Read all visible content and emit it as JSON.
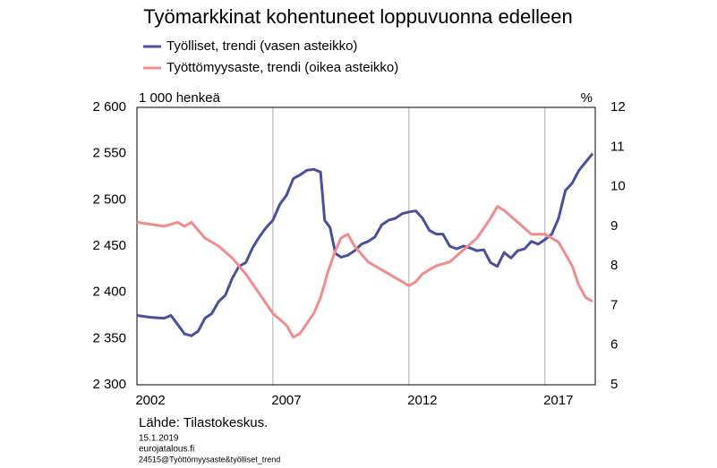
{
  "chart_data": {
    "type": "line",
    "title": "Työmarkkinat kohentuneet loppuvuonna edelleen",
    "y_label": "1 000 henkeä",
    "y2_label": "%",
    "source": "Lähde: Tilastokeskus.",
    "notes": [
      "15.1.2019",
      "eurojatalous.fi",
      "24515@Työttömyysaste&työlliset_trend"
    ],
    "grid": "x",
    "xlim": [
      2002,
      2018.85
    ],
    "xticks": [
      2002,
      2007,
      2012,
      2017
    ],
    "ylim": [
      2300,
      2600
    ],
    "yticks": [
      {
        "value": 2300,
        "label": "2 300"
      },
      {
        "value": 2350,
        "label": "2 350"
      },
      {
        "value": 2400,
        "label": "2 400"
      },
      {
        "value": 2450,
        "label": "2 450"
      },
      {
        "value": 2500,
        "label": "2 500"
      },
      {
        "value": 2550,
        "label": "2 550"
      },
      {
        "value": 2600,
        "label": "2 600"
      }
    ],
    "y2lim": [
      5,
      12
    ],
    "y2ticks": [
      5,
      6,
      7,
      8,
      9,
      10,
      11,
      12
    ],
    "series": [
      {
        "name": "Työlliset, trendi (vasen asteikko)",
        "color": "#4a4f9f",
        "x": [
          2002.0,
          2002.5,
          2003.0,
          2003.25,
          2003.5,
          2003.75,
          2004.0,
          2004.25,
          2004.5,
          2004.75,
          2005.0,
          2005.25,
          2005.5,
          2005.75,
          2006.0,
          2006.25,
          2006.5,
          2006.75,
          2007.0,
          2007.25,
          2007.5,
          2007.75,
          2008.0,
          2008.25,
          2008.5,
          2008.75,
          2008.9,
          2009.1,
          2009.3,
          2009.5,
          2009.75,
          2010.0,
          2010.25,
          2010.5,
          2010.75,
          2011.0,
          2011.25,
          2011.5,
          2011.75,
          2012.0,
          2012.25,
          2012.5,
          2012.75,
          2013.0,
          2013.25,
          2013.5,
          2013.75,
          2014.0,
          2014.25,
          2014.5,
          2014.75,
          2015.0,
          2015.25,
          2015.5,
          2015.75,
          2016.0,
          2016.25,
          2016.5,
          2016.75,
          2017.0,
          2017.25,
          2017.5,
          2017.75,
          2018.0,
          2018.25,
          2018.5,
          2018.75
        ],
        "values": [
          2375,
          2373,
          2372,
          2375,
          2365,
          2355,
          2353,
          2358,
          2372,
          2377,
          2390,
          2397,
          2415,
          2428,
          2432,
          2448,
          2460,
          2470,
          2478,
          2495,
          2505,
          2523,
          2527,
          2532,
          2533,
          2530,
          2478,
          2470,
          2442,
          2438,
          2440,
          2445,
          2452,
          2455,
          2460,
          2473,
          2478,
          2480,
          2485,
          2487,
          2488,
          2480,
          2467,
          2463,
          2463,
          2450,
          2447,
          2450,
          2448,
          2445,
          2446,
          2432,
          2428,
          2443,
          2437,
          2445,
          2447,
          2455,
          2452,
          2457,
          2463,
          2480,
          2510,
          2518,
          2532,
          2541,
          2550
        ]
      },
      {
        "name": "Työttömyysaste, trendi (oikea asteikko)",
        "color": "#f08c8c",
        "axis": "y2",
        "x": [
          2002.0,
          2003.0,
          2003.5,
          2003.75,
          2004.0,
          2004.5,
          2005.0,
          2005.5,
          2006.0,
          2006.5,
          2007.0,
          2007.5,
          2007.75,
          2008.0,
          2008.5,
          2008.75,
          2009.0,
          2009.25,
          2009.5,
          2009.75,
          2010.0,
          2010.5,
          2011.0,
          2011.5,
          2012.0,
          2012.25,
          2012.5,
          2013.0,
          2013.5,
          2014.0,
          2014.5,
          2015.0,
          2015.25,
          2015.5,
          2016.0,
          2016.5,
          2017.0,
          2017.5,
          2018.0,
          2018.25,
          2018.5,
          2018.75
        ],
        "values": [
          9.1,
          9.0,
          9.1,
          9.0,
          9.1,
          8.7,
          8.5,
          8.2,
          7.8,
          7.3,
          6.8,
          6.5,
          6.2,
          6.3,
          6.8,
          7.2,
          7.8,
          8.3,
          8.7,
          8.8,
          8.5,
          8.1,
          7.9,
          7.7,
          7.5,
          7.6,
          7.8,
          8.0,
          8.1,
          8.4,
          8.7,
          9.2,
          9.5,
          9.4,
          9.1,
          8.8,
          8.8,
          8.6,
          8.0,
          7.5,
          7.2,
          7.1
        ]
      }
    ]
  }
}
